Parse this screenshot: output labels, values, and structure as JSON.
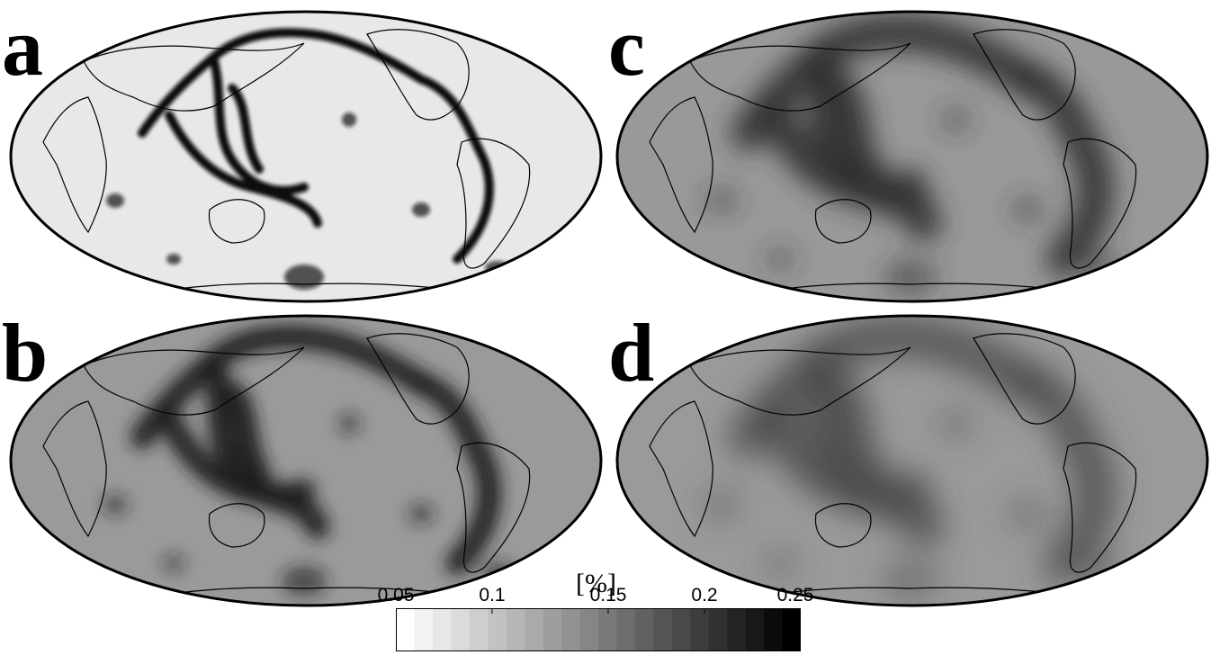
{
  "panels": [
    {
      "label": "a",
      "background": "#e8e8e8",
      "anomaly": "#101010"
    },
    {
      "label": "b",
      "background": "#9a9a9a",
      "anomaly": "#1a1a1a"
    },
    {
      "label": "c",
      "background": "#999999",
      "anomaly": "#303030"
    },
    {
      "label": "d",
      "background": "#9a9a9a",
      "anomaly": "#4a4a4a"
    }
  ],
  "colorbar": {
    "unit": "[%]",
    "ticks": [
      "0.05",
      "0.1",
      "0.15",
      "0.2",
      "0.25"
    ],
    "range": [
      0.05,
      0.25
    ],
    "colors": {
      "low": "#ffffff",
      "high": "#000000"
    }
  }
}
